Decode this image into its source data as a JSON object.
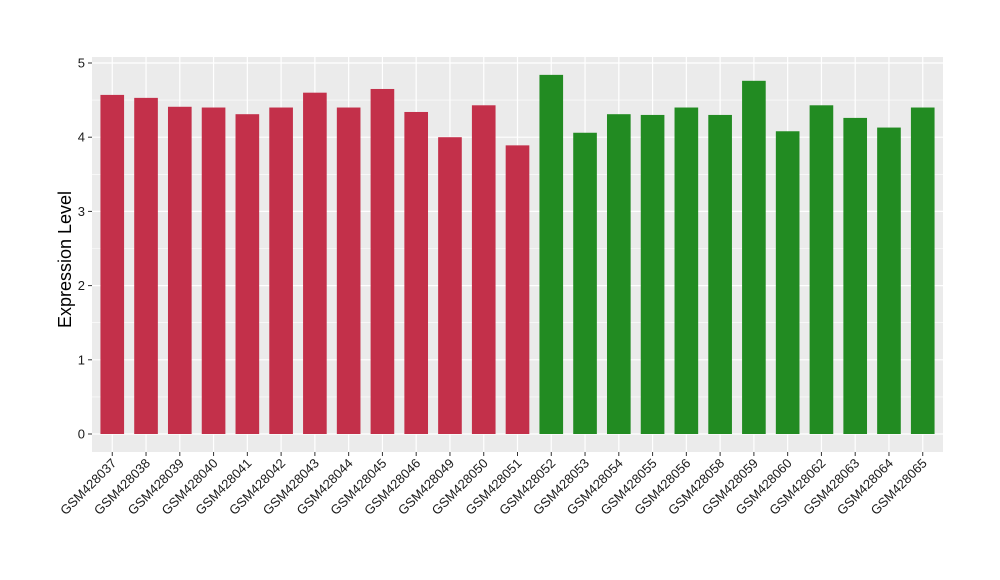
{
  "chart_data": {
    "type": "bar",
    "title": "",
    "xlabel": "",
    "ylabel": "Expression Level",
    "ylim": [
      0,
      5.15
    ],
    "yticks": [
      0,
      1,
      2,
      3,
      4,
      5
    ],
    "grid": true,
    "legend": "none",
    "categories": [
      "GSM428037",
      "GSM428038",
      "GSM428039",
      "GSM428040",
      "GSM428041",
      "GSM428042",
      "GSM428043",
      "GSM428044",
      "GSM428045",
      "GSM428046",
      "GSM428049",
      "GSM428050",
      "GSM428051",
      "GSM428052",
      "GSM428053",
      "GSM428054",
      "GSM428055",
      "GSM428056",
      "GSM428058",
      "GSM428059",
      "GSM428060",
      "GSM428062",
      "GSM428063",
      "GSM428064",
      "GSM428065"
    ],
    "values": [
      4.57,
      4.53,
      4.41,
      4.4,
      4.31,
      4.4,
      4.6,
      4.4,
      4.65,
      4.34,
      4.0,
      4.43,
      3.89,
      4.84,
      4.06,
      4.31,
      4.3,
      4.4,
      4.3,
      4.76,
      4.08,
      4.43,
      4.26,
      4.13,
      4.4
    ],
    "groups": [
      0,
      0,
      0,
      0,
      0,
      0,
      0,
      0,
      0,
      0,
      0,
      0,
      0,
      1,
      1,
      1,
      1,
      1,
      1,
      1,
      1,
      1,
      1,
      1,
      1
    ],
    "colors": [
      "#c3304a",
      "#228b22"
    ],
    "panel_background": "#ebebeb",
    "gridline_color": "#ffffff"
  }
}
